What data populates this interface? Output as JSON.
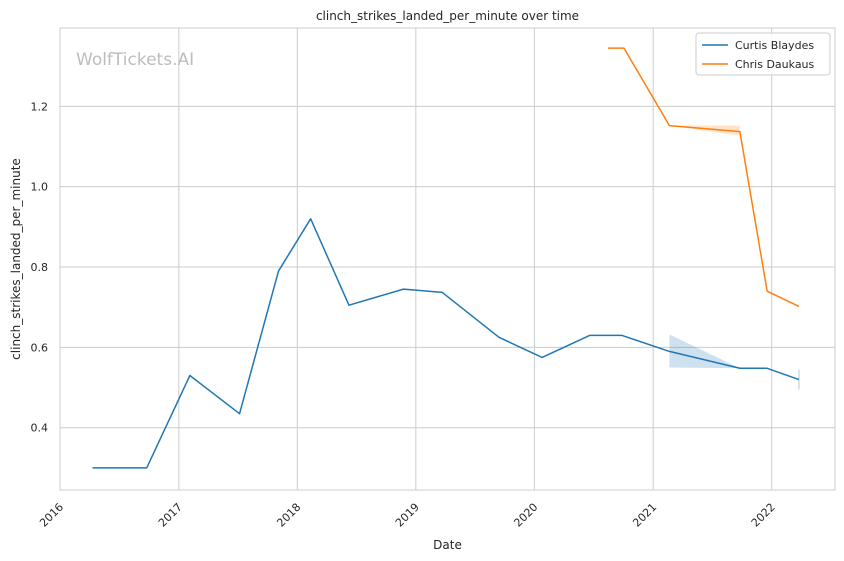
{
  "chart_data": {
    "type": "line",
    "title": "clinch_strikes_landed_per_minute over time",
    "xlabel": "Date",
    "ylabel": "clinch_strikes_landed_per_minute",
    "watermark": "WolfTickets.AI",
    "x_ticks": [
      "2016",
      "2017",
      "2018",
      "2019",
      "2020",
      "2021",
      "2022"
    ],
    "y_ticks": [
      "0.4",
      "0.6",
      "0.8",
      "1.0",
      "1.2"
    ],
    "xlim": [
      "2016-01-01",
      "2022-07-15"
    ],
    "ylim": [
      0.245,
      1.395
    ],
    "grid": true,
    "legend_position": "top-right",
    "series": [
      {
        "name": "Curtis Blaydes",
        "color": "#1f77b4",
        "points": [
          [
            "2016-04-10",
            0.3
          ],
          [
            "2016-09-24",
            0.3
          ],
          [
            "2017-02-04",
            0.53
          ],
          [
            "2017-07-07",
            0.435
          ],
          [
            "2017-11-04",
            0.79
          ],
          [
            "2018-02-11",
            0.92
          ],
          [
            "2018-06-09",
            0.705
          ],
          [
            "2018-11-24",
            0.745
          ],
          [
            "2019-03-23",
            0.737
          ],
          [
            "2019-09-14",
            0.625
          ],
          [
            "2020-01-25",
            0.575
          ],
          [
            "2020-06-20",
            0.63
          ],
          [
            "2020-09-26",
            0.63
          ],
          [
            "2021-02-20",
            0.59
          ],
          [
            "2021-09-25",
            0.548
          ],
          [
            "2021-12-18",
            0.548
          ],
          [
            "2022-03-26",
            0.52
          ]
        ],
        "band": [
          [
            "2021-02-20",
            0.55,
            0.632
          ],
          [
            "2021-09-25",
            0.548,
            0.548
          ]
        ]
      },
      {
        "name": "Chris Daukaus",
        "color": "#ff7f0e",
        "points": [
          [
            "2020-08-15",
            1.345
          ],
          [
            "2020-10-03",
            1.345
          ],
          [
            "2021-02-20",
            1.152
          ],
          [
            "2021-09-25",
            1.137
          ],
          [
            "2021-12-18",
            0.74
          ],
          [
            "2022-03-26",
            0.702
          ]
        ],
        "band": [
          [
            "2021-02-20",
            1.152,
            1.152
          ],
          [
            "2021-09-25",
            1.127,
            1.152
          ]
        ]
      }
    ]
  }
}
